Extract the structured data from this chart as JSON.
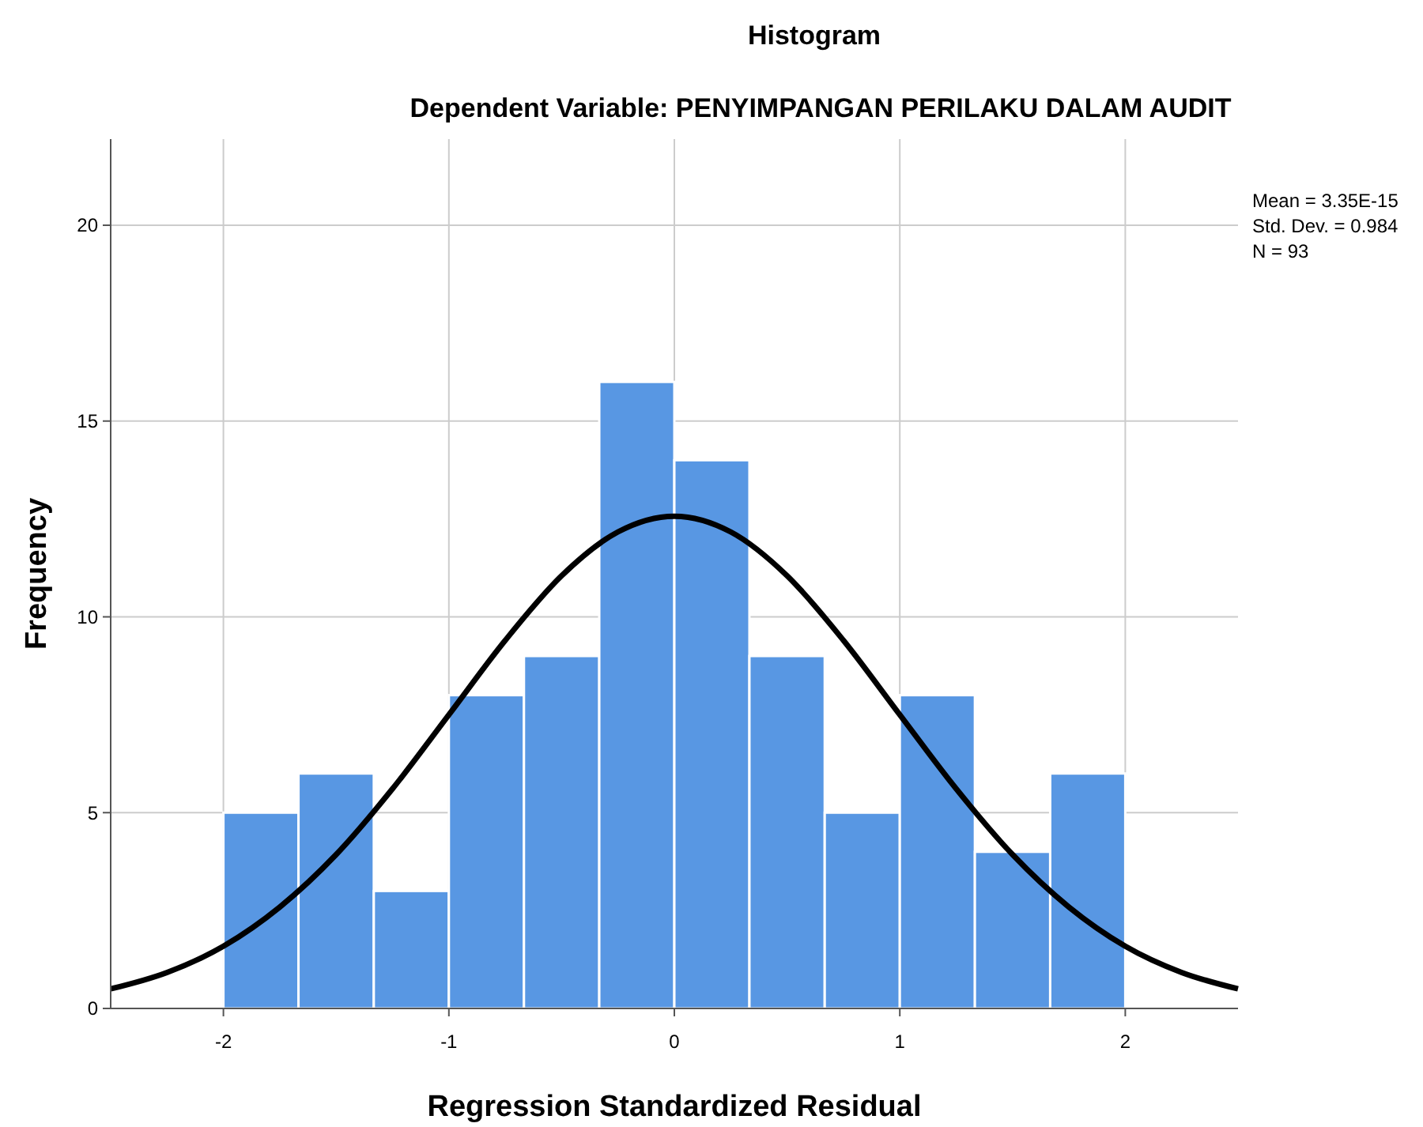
{
  "chart_data": {
    "type": "histogram",
    "title": "Histogram",
    "subtitle": "Dependent Variable: PENYIMPANGAN PERILAKU DALAM AUDIT",
    "xlabel": "Regression Standardized Residual",
    "ylabel": "Frequency",
    "bins": [
      -2,
      -1.667,
      -1.333,
      -1,
      -0.667,
      -0.333,
      0,
      0.333,
      0.667,
      1,
      1.333,
      1.667,
      2
    ],
    "series": [
      {
        "color": "#5897e3",
        "values": [
          5,
          6,
          3,
          8,
          9,
          16,
          14,
          9,
          5,
          8,
          4,
          6
        ]
      },
      {
        "type": "line",
        "color": "#000000",
        "x": [
          -2.5,
          -2.25,
          -2,
          -1.75,
          -1.5,
          -1.25,
          -1,
          -0.75,
          -0.5,
          -0.25,
          0,
          0.25,
          0.5,
          0.75,
          1,
          1.25,
          1.5,
          1.75,
          2,
          2.25,
          2.5
        ],
        "values": [
          0.5,
          0.92,
          1.59,
          2.59,
          3.93,
          5.61,
          7.5,
          9.4,
          11.05,
          12.17,
          12.57,
          12.17,
          11.05,
          9.4,
          7.5,
          5.61,
          3.93,
          2.59,
          1.59,
          0.92,
          0.5
        ]
      }
    ],
    "xlim": [
      -2.5,
      2.5
    ],
    "ylim": [
      0,
      22.2
    ],
    "xticks": [
      -2,
      -1,
      0,
      1,
      2
    ],
    "yticks": [
      0,
      5,
      10,
      15,
      20
    ],
    "grid": true,
    "marker": "none",
    "line_style": "solid",
    "annotations": [
      "Mean = 3.35E-15",
      "Std. Dev. = 0.984",
      "N = 93"
    ]
  }
}
